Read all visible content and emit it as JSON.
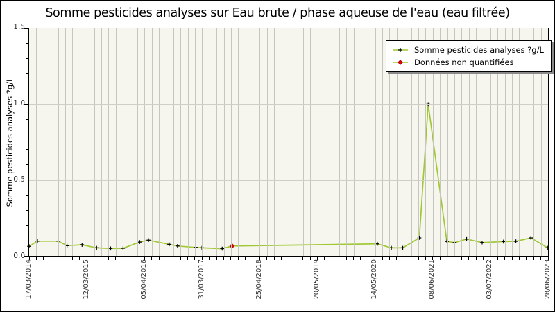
{
  "title": "Somme pesticides analyses sur Eau brute / phase aqueuse de l'eau (eau filtrée)",
  "y_axis": {
    "label": "Somme pesticides analyses ?g/L",
    "min": 0,
    "max": 1.5,
    "major_step": 0.5,
    "minor_step": 0.1,
    "major_tick_labels": [
      "0.0",
      "0.5",
      "1.0",
      "1.5"
    ]
  },
  "x_axis": {
    "minor_tick_count": 73,
    "label_every_nth_tick": 8,
    "tick_labels": [
      "17/03/2014",
      "12/03/2015",
      "05/04/2016",
      "31/03/2017",
      "25/04/2018",
      "20/05/2019",
      "14/05/2020",
      "08/06/2021",
      "03/07/2022",
      "28/06/2023"
    ]
  },
  "legend": {
    "items": [
      {
        "label": "Somme pesticides analyses ?g/L",
        "marker": "plus"
      },
      {
        "label": "Données non quantifiées",
        "marker": "diamond"
      }
    ]
  },
  "colors": {
    "line": "#a0c832",
    "marker": "#000000",
    "unquantified_marker": "#e00007",
    "unquantified_marker_edge": "#990000",
    "plot_background": "#f6f6ee",
    "vertical_gridline": "#c6c6c0",
    "horizontal_gridline": "#cfcfc8",
    "figure_border": "#000000",
    "legend_shadow": "#8a8a8a"
  },
  "chart_data": {
    "type": "line",
    "title": "Somme pesticides analyses sur Eau brute / phase aqueuse de l'eau (eau filtrée)",
    "xlabel": "",
    "ylabel": "Somme pesticides analyses ?g/L",
    "ylim": [
      0,
      1.5
    ],
    "grid": true,
    "legend_position": "upper right",
    "x_tick_labels": [
      "17/03/2014",
      "12/03/2015",
      "05/04/2016",
      "31/03/2017",
      "25/04/2018",
      "20/05/2019",
      "14/05/2020",
      "08/06/2021",
      "03/07/2022",
      "28/06/2023"
    ],
    "series_name": "Somme pesticides analyses ?g/L",
    "points": [
      {
        "x_frac": 0.0,
        "value": 0.063,
        "approx_date": "17/03/2014",
        "quantified": true
      },
      {
        "x_frac": 0.016,
        "value": 0.097,
        "approx_date": "06/05/2014",
        "quantified": true
      },
      {
        "x_frac": 0.056,
        "value": 0.097,
        "approx_date": "13/09/2014",
        "quantified": true
      },
      {
        "x_frac": 0.073,
        "value": 0.067,
        "approx_date": "07/11/2014",
        "quantified": true
      },
      {
        "x_frac": 0.102,
        "value": 0.073,
        "approx_date": "10/02/2015",
        "quantified": true
      },
      {
        "x_frac": 0.13,
        "value": 0.053,
        "approx_date": "18/05/2015",
        "quantified": true
      },
      {
        "x_frac": 0.157,
        "value": 0.049,
        "approx_date": "19/08/2015",
        "quantified": true
      },
      {
        "x_frac": 0.181,
        "value": 0.05,
        "approx_date": "14/11/2015",
        "quantified": true
      },
      {
        "x_frac": 0.213,
        "value": 0.091,
        "approx_date": "03/03/2016",
        "quantified": true
      },
      {
        "x_frac": 0.23,
        "value": 0.104,
        "approx_date": "29/04/2016",
        "quantified": true
      },
      {
        "x_frac": 0.27,
        "value": 0.076,
        "approx_date": "08/09/2016",
        "quantified": true
      },
      {
        "x_frac": 0.286,
        "value": 0.065,
        "approx_date": "29/10/2016",
        "quantified": true
      },
      {
        "x_frac": 0.321,
        "value": 0.056,
        "approx_date": "19/02/2017",
        "quantified": true
      },
      {
        "x_frac": 0.333,
        "value": 0.053,
        "approx_date": "31/03/2017",
        "quantified": true
      },
      {
        "x_frac": 0.372,
        "value": 0.048,
        "approx_date": "24/08/2017",
        "quantified": true
      },
      {
        "x_frac": 0.391,
        "value": 0.065,
        "approx_date": "12/10/2017",
        "quantified": false
      },
      {
        "x_frac": 0.671,
        "value": 0.079,
        "approx_date": "14/05/2020",
        "quantified": true
      },
      {
        "x_frac": 0.698,
        "value": 0.053,
        "approx_date": "19/08/2020",
        "quantified": true
      },
      {
        "x_frac": 0.72,
        "value": 0.053,
        "approx_date": "25/11/2020",
        "quantified": true
      },
      {
        "x_frac": 0.752,
        "value": 0.119,
        "approx_date": "02/03/2021",
        "quantified": true
      },
      {
        "x_frac": 0.769,
        "value": 1.0,
        "approx_date": "08/06/2021",
        "quantified": true
      },
      {
        "x_frac": 0.805,
        "value": 0.095,
        "approx_date": "13/09/2021",
        "quantified": true
      },
      {
        "x_frac": 0.82,
        "value": 0.088,
        "approx_date": "01/11/2021",
        "quantified": true
      },
      {
        "x_frac": 0.843,
        "value": 0.111,
        "approx_date": "07/02/2022",
        "quantified": true
      },
      {
        "x_frac": 0.873,
        "value": 0.088,
        "approx_date": "15/05/2022",
        "quantified": true
      },
      {
        "x_frac": 0.914,
        "value": 0.094,
        "approx_date": "01/10/2022",
        "quantified": true
      },
      {
        "x_frac": 0.938,
        "value": 0.096,
        "approx_date": "07/12/2022",
        "quantified": true
      },
      {
        "x_frac": 0.967,
        "value": 0.119,
        "approx_date": "30/03/2023",
        "quantified": true
      },
      {
        "x_frac": 0.999,
        "value": 0.053,
        "approx_date": "28/06/2023",
        "quantified": true
      }
    ]
  }
}
